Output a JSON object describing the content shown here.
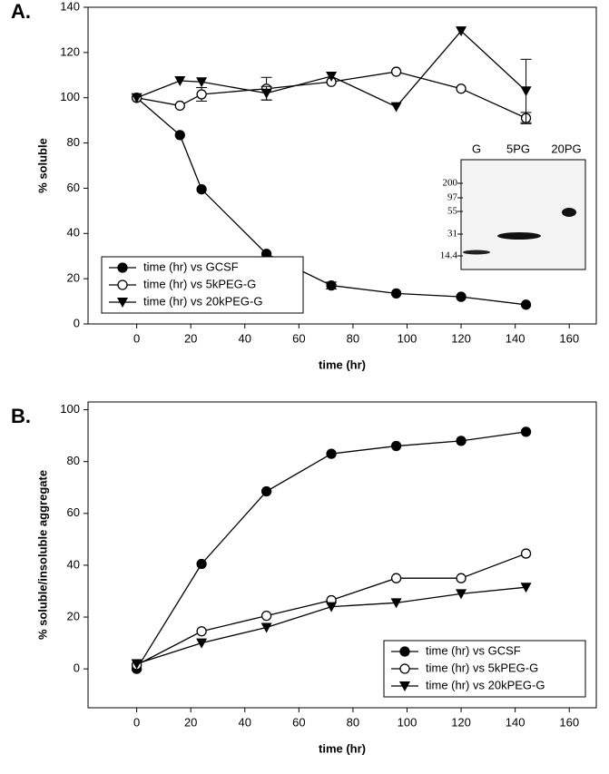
{
  "chart_data": [
    {
      "type": "line",
      "panel": "A.",
      "xlabel": "time (hr)",
      "ylabel": "% soluble",
      "xlim": [
        -18,
        170
      ],
      "xticks": [
        0,
        20,
        40,
        60,
        80,
        100,
        120,
        140,
        160
      ],
      "ylim": [
        0,
        140
      ],
      "yticks": [
        0,
        20,
        40,
        60,
        80,
        100,
        120,
        140
      ],
      "legend": "lower-left",
      "series": [
        {
          "name": "time (hr) vs GCSF",
          "marker": "filled-circle",
          "color": "#000000",
          "x": [
            0,
            16,
            24,
            48,
            72,
            96,
            120,
            144
          ],
          "values": [
            100,
            83.5,
            59.5,
            31,
            17,
            13.5,
            12,
            8.5
          ],
          "errors": [
            null,
            null,
            null,
            null,
            1.5,
            null,
            null,
            null
          ]
        },
        {
          "name": "time (hr) vs 5kPEG-G",
          "marker": "open-circle",
          "color": "#000000",
          "x": [
            0,
            16,
            24,
            48,
            72,
            96,
            120,
            144
          ],
          "values": [
            100,
            96.5,
            101.5,
            104,
            107,
            111.5,
            104,
            91
          ],
          "errors": [
            null,
            null,
            3,
            5,
            null,
            null,
            null,
            2.5
          ]
        },
        {
          "name": "time (hr) vs 20kPEG-G",
          "marker": "filled-triangle",
          "color": "#000000",
          "x": [
            0,
            16,
            24,
            48,
            72,
            96,
            120,
            144
          ],
          "values": [
            100,
            107.5,
            107,
            102,
            109.5,
            96,
            129.5,
            103
          ],
          "errors": [
            null,
            null,
            null,
            3,
            null,
            null,
            null,
            14
          ]
        }
      ],
      "inset": {
        "lanes": [
          "G",
          "5PG",
          "20PG"
        ],
        "markers": [
          "200",
          "97",
          "55",
          "31",
          "14.4"
        ]
      }
    },
    {
      "type": "line",
      "panel": "B.",
      "xlabel": "time (hr)",
      "ylabel": "% soluble/insoluble aggregate",
      "xlim": [
        -18,
        170
      ],
      "xticks": [
        0,
        20,
        40,
        60,
        80,
        100,
        120,
        140,
        160
      ],
      "ylim": [
        -15,
        103
      ],
      "yticks": [
        0,
        20,
        40,
        60,
        80,
        100
      ],
      "legend": "lower-right",
      "series": [
        {
          "name": "time (hr) vs GCSF",
          "marker": "filled-circle",
          "color": "#000000",
          "x": [
            0,
            24,
            48,
            72,
            96,
            120,
            144
          ],
          "values": [
            0,
            40.5,
            68.5,
            83,
            86,
            88,
            91.5
          ]
        },
        {
          "name": "time (hr) vs 5kPEG-G",
          "marker": "open-circle",
          "color": "#000000",
          "x": [
            0,
            24,
            48,
            72,
            96,
            120,
            144
          ],
          "values": [
            1.5,
            14.5,
            20.5,
            26.5,
            35,
            35,
            44.5
          ]
        },
        {
          "name": "time (hr) vs 20kPEG-G",
          "marker": "filled-triangle",
          "color": "#000000",
          "x": [
            0,
            24,
            48,
            72,
            96,
            120,
            144
          ],
          "values": [
            2,
            10,
            16,
            24,
            25.5,
            29,
            31.5
          ]
        }
      ]
    }
  ]
}
